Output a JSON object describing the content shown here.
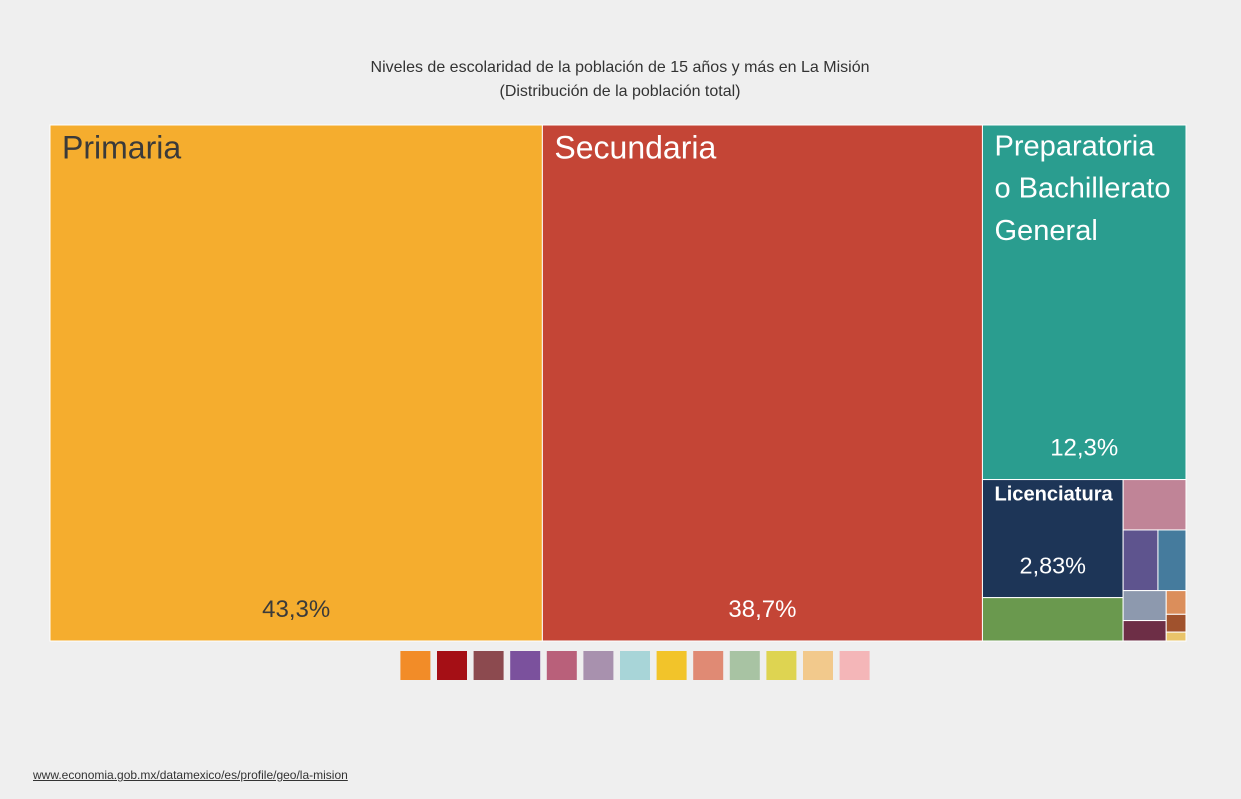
{
  "chart_data": {
    "type": "treemap",
    "title": "Niveles de escolaridad de la población de 15 años y más en La Misión",
    "subtitle": "(Distribución de la población total)",
    "categories": [
      "Primaria",
      "Secundaria",
      "Preparatoria o Bachillerato General",
      "Licenciatura",
      null,
      null,
      null,
      null,
      null,
      null,
      null,
      null,
      null
    ],
    "values": [
      43.3,
      38.7,
      12.3,
      2.83,
      1.04,
      0.54,
      0.36,
      0.29,
      0.22,
      0.15,
      0.08,
      0.06,
      0.03
    ],
    "value_labels": [
      "43,3%",
      "38,7%",
      "12,3%",
      "2,83%",
      null,
      null,
      null,
      null,
      null,
      null,
      null,
      null,
      null
    ],
    "colors": [
      "#F5AD2E",
      "#C44536",
      "#2A9D8F",
      "#1D3557",
      "#6A994E",
      "#C08497",
      "#5E548E",
      "#457B9D",
      "#8D99AE",
      "#6D2E46",
      "#DB8E5B",
      "#A0522D",
      "#E9C46A"
    ],
    "legend_colors": [
      "#F28C28",
      "#A50F15",
      "#8C4A4F",
      "#7B519D",
      "#B9607A",
      "#A891AE",
      "#A8D5D8",
      "#F2C42A",
      "#E08A74",
      "#A8C3A3",
      "#DED451",
      "#F2C98C",
      "#F4B6B8"
    ],
    "source": "www.economia.gob.mx/datamexico/es/profile/geo/la-mision"
  }
}
